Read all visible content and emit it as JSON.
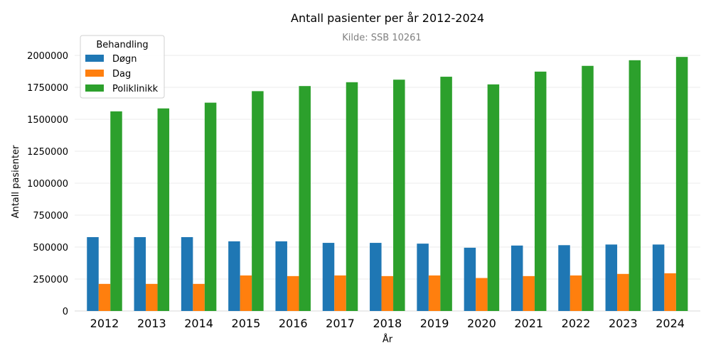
{
  "chart_data": {
    "type": "bar",
    "title": "Antall pasienter per år 2012-2024",
    "subtitle": "Kilde: SSB 10261",
    "xlabel": "År",
    "ylabel": "Antall pasienter",
    "ylim": [
      0,
      2000000
    ],
    "yticks": [
      0,
      250000,
      500000,
      750000,
      1000000,
      1250000,
      1500000,
      1750000,
      2000000
    ],
    "grid": true,
    "legend": {
      "title": "Behandling",
      "placement": "top-left"
    },
    "categories": [
      "2012",
      "2013",
      "2014",
      "2015",
      "2016",
      "2017",
      "2018",
      "2019",
      "2020",
      "2021",
      "2022",
      "2023",
      "2024"
    ],
    "series": [
      {
        "name": "Døgn",
        "color": "#1f77b4",
        "values": [
          578000,
          578000,
          578000,
          545000,
          545000,
          533000,
          533000,
          527000,
          495000,
          512000,
          515000,
          520000,
          520000
        ]
      },
      {
        "name": "Dag",
        "color": "#ff7f0e",
        "values": [
          212000,
          212000,
          212000,
          278000,
          273000,
          278000,
          273000,
          278000,
          258000,
          273000,
          278000,
          290000,
          295000
        ]
      },
      {
        "name": "Poliklinikk",
        "color": "#2ca02c",
        "values": [
          1562000,
          1585000,
          1630000,
          1720000,
          1760000,
          1790000,
          1810000,
          1833000,
          1773000,
          1873000,
          1918000,
          1962000,
          1988000
        ]
      }
    ]
  }
}
